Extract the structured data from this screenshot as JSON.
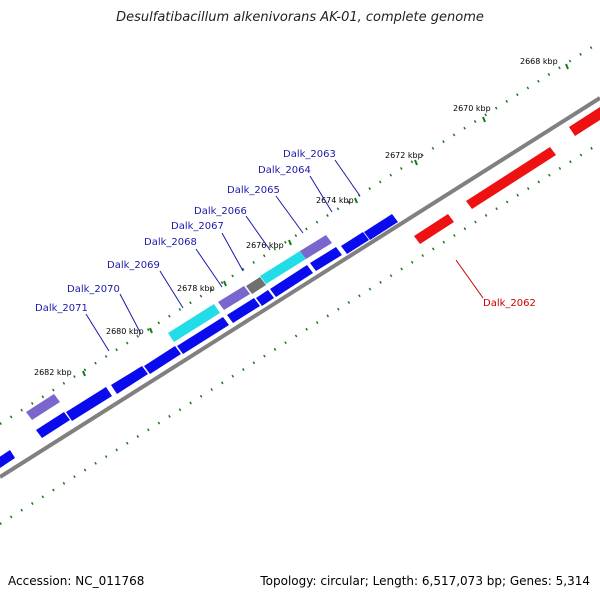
{
  "title": "Desulfatibacillum alkenivorans AK-01, complete genome",
  "footer": {
    "accession": "Accession: NC_011768",
    "summary": "Topology: circular; Length: 6,517,073 bp; Genes: 5,314"
  },
  "colors": {
    "forward_gene": "#0a0aee",
    "reverse_gene": "#ee1111",
    "highlight_cyan": "#22dde8",
    "highlight_violet": "#7a66cc",
    "highlight_gray": "#707070",
    "backbone": "#808080",
    "tick_green": "#1a7a1a"
  },
  "tick_labels": [
    "2668 kbp",
    "2670 kbp",
    "2672 kbp",
    "2674 kbp",
    "2676 kbp",
    "2678 kbp",
    "2680 kbp",
    "2682 kbp"
  ],
  "gene_labels": {
    "forward": [
      "Dalk_2063",
      "Dalk_2064",
      "Dalk_2065",
      "Dalk_2066",
      "Dalk_2067",
      "Dalk_2068",
      "Dalk_2069",
      "Dalk_2070",
      "Dalk_2071"
    ],
    "reverse": [
      "Dalk_2062"
    ]
  }
}
